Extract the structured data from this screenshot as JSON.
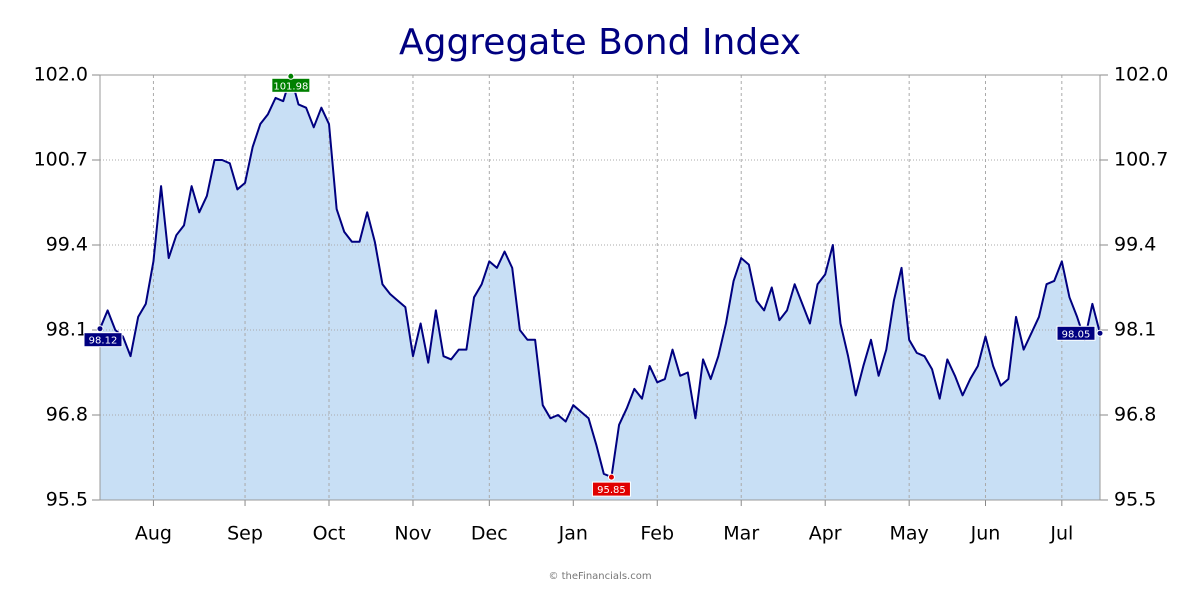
{
  "chart_data": {
    "type": "area",
    "title": "Aggregate Bond Index",
    "source": "© theFinancials.com",
    "categories": [
      null,
      null,
      null,
      null,
      null,
      null,
      null,
      "Aug",
      null,
      null,
      null,
      null,
      null,
      null,
      null,
      null,
      null,
      null,
      null,
      "Sep",
      null,
      null,
      null,
      null,
      null,
      null,
      null,
      null,
      null,
      null,
      "Oct",
      null,
      null,
      null,
      null,
      null,
      null,
      null,
      null,
      null,
      null,
      "Nov",
      null,
      null,
      null,
      null,
      null,
      null,
      null,
      null,
      null,
      "Dec",
      null,
      null,
      null,
      null,
      null,
      null,
      null,
      null,
      null,
      null,
      "Jan",
      null,
      null,
      null,
      null,
      null,
      null,
      null,
      null,
      null,
      null,
      "Feb",
      null,
      null,
      null,
      null,
      null,
      null,
      null,
      null,
      null,
      null,
      "Mar",
      null,
      null,
      null,
      null,
      null,
      null,
      null,
      null,
      null,
      null,
      "Apr",
      null,
      null,
      null,
      null,
      null,
      null,
      null,
      null,
      null,
      null,
      "May",
      null,
      null,
      null,
      null,
      null,
      null,
      null,
      null,
      null,
      "Jun",
      null,
      null,
      null,
      null,
      null,
      null,
      null,
      null,
      null,
      "Jul",
      null,
      null,
      null,
      null,
      null
    ],
    "values": [
      98.12,
      98.4,
      98.1,
      98.0,
      97.7,
      98.3,
      98.5,
      99.15,
      100.3,
      99.2,
      99.55,
      99.7,
      100.3,
      99.9,
      100.15,
      100.7,
      100.7,
      100.65,
      100.25,
      100.35,
      100.9,
      101.25,
      101.4,
      101.65,
      101.6,
      101.98,
      101.55,
      101.5,
      101.2,
      101.5,
      101.25,
      99.95,
      99.6,
      99.45,
      99.45,
      99.9,
      99.45,
      98.8,
      98.65,
      98.55,
      98.45,
      97.7,
      98.2,
      97.6,
      98.4,
      97.7,
      97.65,
      97.8,
      97.8,
      98.6,
      98.8,
      99.15,
      99.05,
      99.3,
      99.05,
      98.1,
      97.95,
      97.95,
      96.95,
      96.75,
      96.8,
      96.7,
      96.95,
      96.85,
      96.75,
      96.35,
      95.9,
      95.85,
      96.65,
      96.9,
      97.2,
      97.05,
      97.55,
      97.3,
      97.35,
      97.8,
      97.4,
      97.45,
      96.75,
      97.65,
      97.35,
      97.7,
      98.2,
      98.85,
      99.2,
      99.1,
      98.55,
      98.4,
      98.75,
      98.25,
      98.4,
      98.8,
      98.5,
      98.2,
      98.8,
      98.95,
      99.4,
      98.2,
      97.7,
      97.1,
      97.55,
      97.95,
      97.4,
      97.8,
      98.55,
      99.05,
      97.95,
      97.75,
      97.7,
      97.5,
      97.05,
      97.65,
      97.4,
      97.1,
      97.35,
      97.55,
      98.0,
      97.55,
      97.25,
      97.35,
      98.3,
      97.8,
      98.05,
      98.3,
      98.8,
      98.85,
      99.15,
      98.6,
      98.3,
      97.95,
      98.5,
      98.05
    ],
    "color": "#000080",
    "fill": "#c8dff5",
    "marker_colors": {
      "first": "#000080",
      "last": "#000080",
      "max": "#008000",
      "min": "#e00000"
    },
    "ylim": [
      95.5,
      102
    ],
    "yticks": [
      95.5,
      96.8,
      98.1,
      99.4,
      100.7,
      {
        "value": 102,
        "label": "102.0"
      }
    ],
    "grid": true
  }
}
